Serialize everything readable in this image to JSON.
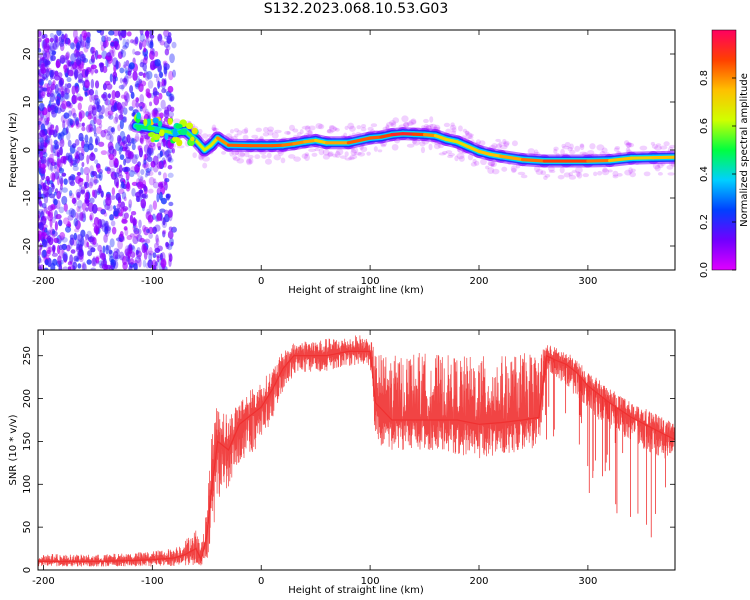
{
  "title": "S132.2023.068.10.53.G03",
  "chart_data": [
    {
      "type": "heatmap",
      "title": "",
      "xlabel": "Height of straight line (km)",
      "ylabel": "Frequency (Hz)",
      "xlim": [
        -205,
        380
      ],
      "ylim": [
        -25,
        25
      ],
      "xticks": [
        -200,
        -100,
        0,
        100,
        200,
        300
      ],
      "yticks": [
        -20,
        -10,
        0,
        10,
        20
      ],
      "colorbar": {
        "label": "Normalized spectral amplitude",
        "range": [
          0,
          1
        ],
        "ticks": [
          "0.0",
          "0.2",
          "0.4",
          "0.6",
          "0.8"
        ],
        "colormap": "gist_rainbow_r",
        "colors": [
          "#e000ff",
          "#7000ff",
          "#0040ff",
          "#00d0ff",
          "#00ff40",
          "#d0ff00",
          "#ffc000",
          "#ff4000",
          "#ff0060"
        ]
      },
      "ridge": {
        "x": [
          -115,
          -100,
          -90,
          -80,
          -70,
          -60,
          -52,
          -46,
          -40,
          -30,
          -10,
          0,
          10,
          20,
          30,
          40,
          50,
          60,
          80,
          100,
          110,
          120,
          130,
          140,
          150,
          160,
          170,
          180,
          190,
          200,
          210,
          220,
          240,
          260,
          280,
          300,
          320,
          340,
          360,
          380
        ],
        "y": [
          5,
          4.5,
          4,
          3.5,
          4,
          2,
          0,
          1,
          2.5,
          1,
          0.9,
          0.9,
          0.9,
          1,
          1.3,
          1.7,
          2,
          1.5,
          1.5,
          2.5,
          2.7,
          3.2,
          3.4,
          3.3,
          3.2,
          3,
          2.2,
          1.7,
          0.7,
          -0.3,
          -0.9,
          -1.3,
          -2,
          -2.3,
          -2.3,
          -2.3,
          -2.2,
          -1.7,
          -1.6,
          -1.5
        ],
        "amplitude": [
          0.5,
          0.45,
          0.6,
          0.55,
          0.5,
          0.6,
          0.7,
          0.6,
          0.75,
          0.85,
          0.85,
          0.85,
          0.85,
          0.85,
          0.8,
          0.8,
          0.75,
          0.7,
          0.85,
          0.85,
          0.85,
          0.9,
          0.95,
          0.9,
          0.85,
          0.75,
          0.7,
          0.7,
          0.7,
          0.75,
          0.75,
          0.75,
          0.8,
          0.85,
          0.9,
          0.85,
          0.8,
          0.7,
          0.75,
          0.75
        ]
      }
    },
    {
      "type": "line",
      "title": "",
      "xlabel": "Height of straight line (km)",
      "ylabel": "SNR (10 * v/v)",
      "xlim": [
        -205,
        380
      ],
      "ylim": [
        0,
        280
      ],
      "xticks": [
        -200,
        -100,
        0,
        100,
        200,
        300
      ],
      "yticks": [
        0,
        50,
        100,
        150,
        200,
        250
      ],
      "color": "#f03030",
      "series": [
        {
          "x": [
            -205,
            -180,
            -150,
            -120,
            -100,
            -80,
            -70,
            -60,
            -55,
            -50,
            -45,
            -40,
            -30,
            -20,
            -10,
            0,
            10,
            20,
            30,
            40,
            60,
            80,
            90,
            100,
            105,
            120,
            140,
            160,
            180,
            200,
            220,
            240,
            255,
            262,
            270,
            280,
            290,
            300,
            320,
            340,
            360,
            380
          ],
          "y": [
            10,
            10,
            10,
            11,
            12,
            14,
            18,
            25,
            12,
            40,
            100,
            150,
            140,
            170,
            180,
            190,
            210,
            235,
            250,
            250,
            250,
            255,
            255,
            255,
            195,
            175,
            175,
            175,
            175,
            170,
            172,
            175,
            178,
            250,
            245,
            240,
            230,
            215,
            195,
            178,
            165,
            152
          ],
          "band_low": [
            4,
            4,
            4,
            4,
            4,
            4,
            5,
            5,
            4,
            10,
            40,
            80,
            95,
            120,
            130,
            150,
            175,
            210,
            225,
            230,
            232,
            238,
            240,
            236,
            145,
            140,
            140,
            140,
            135,
            130,
            135,
            138,
            140,
            230,
            225,
            215,
            200,
            185,
            165,
            150,
            135,
            120
          ],
          "band_high": [
            20,
            18,
            18,
            20,
            22,
            26,
            35,
            48,
            30,
            80,
            165,
            200,
            180,
            200,
            210,
            220,
            235,
            255,
            265,
            268,
            270,
            272,
            275,
            270,
            255,
            250,
            255,
            252,
            250,
            250,
            250,
            253,
            255,
            265,
            260,
            255,
            245,
            232,
            212,
            195,
            185,
            170
          ]
        }
      ]
    }
  ]
}
